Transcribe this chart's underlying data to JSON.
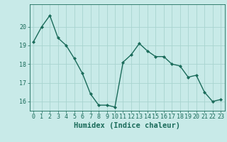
{
  "x": [
    0,
    1,
    2,
    3,
    4,
    5,
    6,
    7,
    8,
    9,
    10,
    11,
    12,
    13,
    14,
    15,
    16,
    17,
    18,
    19,
    20,
    21,
    22,
    23
  ],
  "y": [
    19.2,
    20.0,
    20.6,
    19.4,
    19.0,
    18.3,
    17.5,
    16.4,
    15.8,
    15.8,
    15.7,
    18.1,
    18.5,
    19.1,
    18.7,
    18.4,
    18.4,
    18.0,
    17.9,
    17.3,
    17.4,
    16.5,
    16.0,
    16.1
  ],
  "line_color": "#1a6b5a",
  "marker": "D",
  "marker_size": 2.0,
  "background_color": "#c8eae8",
  "grid_color": "#a8d4d0",
  "xlabel": "Humidex (Indice chaleur)",
  "xlabel_fontsize": 7.5,
  "tick_fontsize": 6.0,
  "ylim": [
    15.5,
    21.2
  ],
  "xlim": [
    -0.5,
    23.5
  ],
  "yticks": [
    16,
    17,
    18,
    19,
    20
  ],
  "xticks": [
    0,
    1,
    2,
    3,
    4,
    5,
    6,
    7,
    8,
    9,
    10,
    11,
    12,
    13,
    14,
    15,
    16,
    17,
    18,
    19,
    20,
    21,
    22,
    23
  ],
  "linewidth": 1.0
}
